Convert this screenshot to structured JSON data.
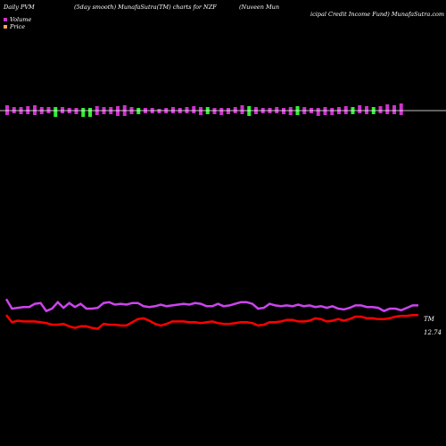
{
  "header": {
    "part1": "Daily PVM",
    "part2": "(5day smooth) MunafaSutra(TM) charts for NZF",
    "part3a": "(Nuveen  Mun",
    "part3b": "icipal Credit Income   Fund) MunafaSutra.com",
    "part4": ""
  },
  "legend": {
    "volume_label": "Volume",
    "price_label": "Price",
    "volume_color": "#cc33cc",
    "price_color": "#f4a460"
  },
  "chart_data": {
    "type": "line",
    "end_labels": {
      "upper": "TM",
      "lower": "12.74"
    },
    "colors": {
      "upper_line": "#cc44ee",
      "lower_line": "#ff0000",
      "bar_up": "#cc33cc",
      "bar_down": "#33ee33",
      "baseline": "#ffffff"
    },
    "volume_bars": [
      {
        "h": 6,
        "d": 5,
        "c": "up"
      },
      {
        "h": 4,
        "d": 3,
        "c": "up"
      },
      {
        "h": 4,
        "d": 4,
        "c": "up"
      },
      {
        "h": 5,
        "d": 4,
        "c": "up"
      },
      {
        "h": 6,
        "d": 5,
        "c": "up"
      },
      {
        "h": 4,
        "d": 4,
        "c": "up"
      },
      {
        "h": 4,
        "d": 3,
        "c": "up"
      },
      {
        "h": 4,
        "d": 7,
        "c": "down"
      },
      {
        "h": 4,
        "d": 3,
        "c": "up"
      },
      {
        "h": 3,
        "d": 3,
        "c": "up"
      },
      {
        "h": 3,
        "d": 4,
        "c": "up"
      },
      {
        "h": 3,
        "d": 7,
        "c": "down"
      },
      {
        "h": 3,
        "d": 7,
        "c": "down"
      },
      {
        "h": 5,
        "d": 5,
        "c": "up"
      },
      {
        "h": 4,
        "d": 4,
        "c": "up"
      },
      {
        "h": 4,
        "d": 4,
        "c": "up"
      },
      {
        "h": 5,
        "d": 6,
        "c": "up"
      },
      {
        "h": 6,
        "d": 6,
        "c": "up"
      },
      {
        "h": 4,
        "d": 4,
        "c": "up"
      },
      {
        "h": 3,
        "d": 4,
        "c": "down"
      },
      {
        "h": 3,
        "d": 3,
        "c": "up"
      },
      {
        "h": 3,
        "d": 3,
        "c": "up"
      },
      {
        "h": 2,
        "d": 3,
        "c": "up"
      },
      {
        "h": 3,
        "d": 3,
        "c": "up"
      },
      {
        "h": 4,
        "d": 3,
        "c": "up"
      },
      {
        "h": 3,
        "d": 3,
        "c": "up"
      },
      {
        "h": 4,
        "d": 3,
        "c": "up"
      },
      {
        "h": 5,
        "d": 3,
        "c": "up"
      },
      {
        "h": 4,
        "d": 5,
        "c": "up"
      },
      {
        "h": 4,
        "d": 4,
        "c": "down"
      },
      {
        "h": 3,
        "d": 4,
        "c": "up"
      },
      {
        "h": 3,
        "d": 5,
        "c": "up"
      },
      {
        "h": 3,
        "d": 4,
        "c": "up"
      },
      {
        "h": 4,
        "d": 3,
        "c": "up"
      },
      {
        "h": 6,
        "d": 4,
        "c": "up"
      },
      {
        "h": 5,
        "d": 6,
        "c": "down"
      },
      {
        "h": 4,
        "d": 4,
        "c": "up"
      },
      {
        "h": 3,
        "d": 3,
        "c": "up"
      },
      {
        "h": 3,
        "d": 3,
        "c": "up"
      },
      {
        "h": 4,
        "d": 3,
        "c": "up"
      },
      {
        "h": 3,
        "d": 4,
        "c": "up"
      },
      {
        "h": 4,
        "d": 5,
        "c": "up"
      },
      {
        "h": 5,
        "d": 5,
        "c": "down"
      },
      {
        "h": 4,
        "d": 4,
        "c": "up"
      },
      {
        "h": 3,
        "d": 3,
        "c": "up"
      },
      {
        "h": 3,
        "d": 6,
        "c": "up"
      },
      {
        "h": 4,
        "d": 5,
        "c": "up"
      },
      {
        "h": 3,
        "d": 5,
        "c": "up"
      },
      {
        "h": 4,
        "d": 4,
        "c": "up"
      },
      {
        "h": 5,
        "d": 4,
        "c": "up"
      },
      {
        "h": 4,
        "d": 4,
        "c": "down"
      },
      {
        "h": 6,
        "d": 3,
        "c": "up"
      },
      {
        "h": 5,
        "d": 4,
        "c": "up"
      },
      {
        "h": 4,
        "d": 4,
        "c": "down"
      },
      {
        "h": 5,
        "d": 3,
        "c": "up"
      },
      {
        "h": 7,
        "d": 4,
        "c": "up"
      },
      {
        "h": 6,
        "d": 4,
        "c": "up"
      },
      {
        "h": 8,
        "d": 5,
        "c": "up"
      }
    ],
    "upper_series": [
      72,
      60,
      61,
      62,
      62,
      66,
      67,
      57,
      60,
      68,
      61,
      67,
      62,
      66,
      60,
      60,
      61,
      67,
      68,
      65,
      66,
      65,
      67,
      67,
      63,
      62,
      63,
      65,
      63,
      64,
      65,
      66,
      65,
      67,
      66,
      63,
      63,
      66,
      63,
      64,
      66,
      68,
      68,
      66,
      60,
      61,
      66,
      64,
      63,
      64,
      63,
      65,
      63,
      64,
      62,
      63,
      61,
      63,
      60,
      59,
      61,
      64,
      64,
      62,
      62,
      61,
      57,
      60,
      60,
      58,
      61,
      64,
      64
    ],
    "lower_series": [
      52,
      43,
      45,
      44,
      44,
      44,
      43,
      42,
      40,
      40,
      41,
      38,
      36,
      38,
      38,
      36,
      35,
      41,
      40,
      40,
      39,
      39,
      43,
      47,
      48,
      45,
      41,
      39,
      41,
      44,
      44,
      44,
      43,
      43,
      42,
      43,
      44,
      42,
      41,
      41,
      42,
      43,
      43,
      42,
      39,
      40,
      43,
      43,
      44,
      46,
      46,
      44,
      44,
      45,
      48,
      47,
      44,
      45,
      47,
      45,
      47,
      50,
      50,
      48,
      48,
      47,
      47,
      48,
      50,
      51,
      51,
      52,
      52
    ]
  }
}
